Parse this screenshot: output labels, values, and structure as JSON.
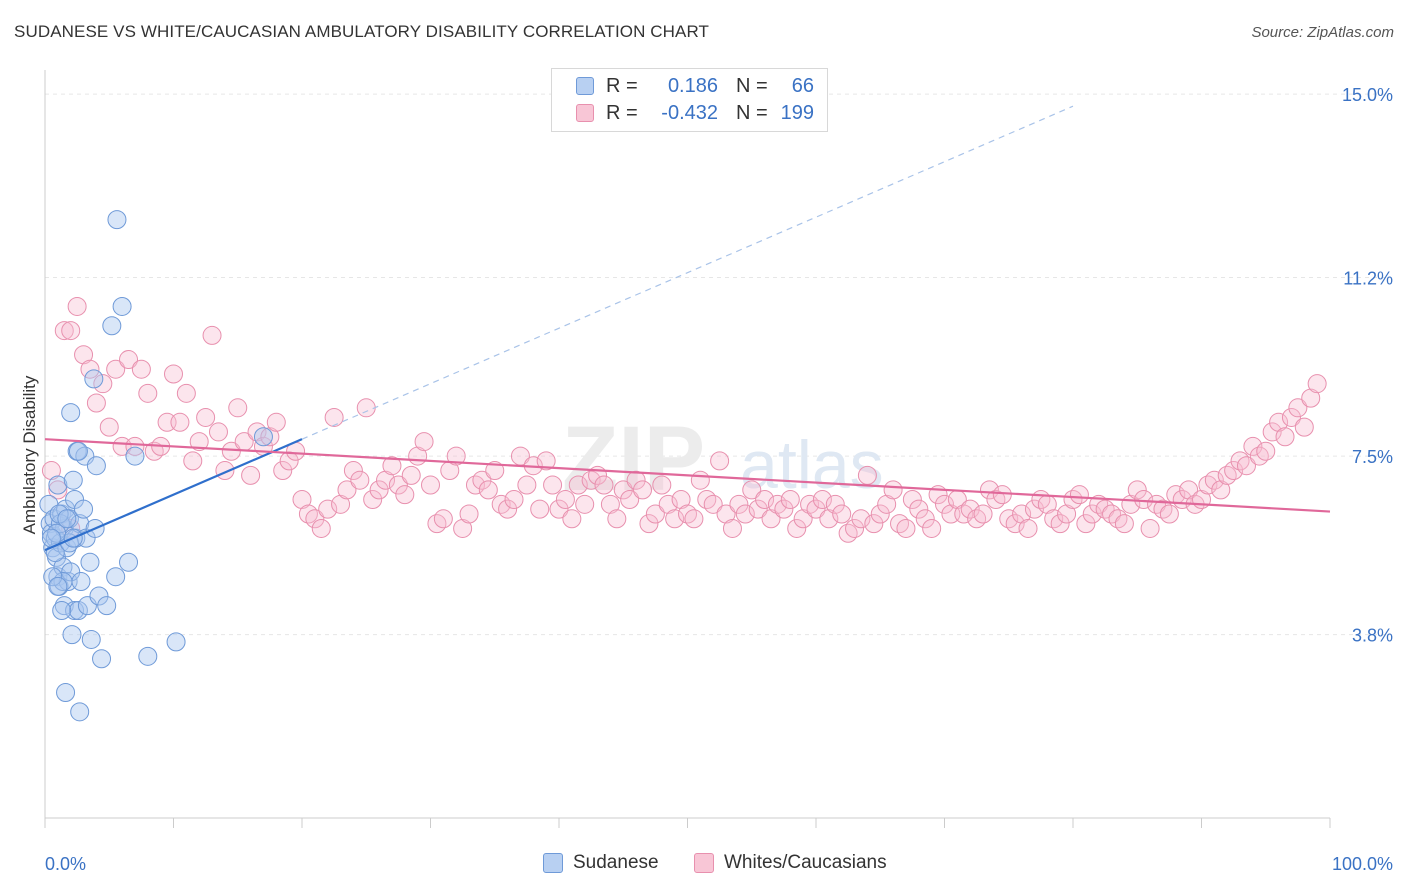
{
  "header": {
    "title": "SUDANESE VS WHITE/CAUCASIAN AMBULATORY DISABILITY CORRELATION CHART",
    "source": "Source: ZipAtlas.com"
  },
  "legend": {
    "rows": [
      {
        "r_label": "R =",
        "r_value": "0.186",
        "n_label": "N =",
        "n_value": "66",
        "fill": "#b8d0f2",
        "stroke": "#6f9ad8"
      },
      {
        "r_label": "R =",
        "r_value": "-0.432",
        "n_label": "N =",
        "n_value": "199",
        "fill": "#f8c6d6",
        "stroke": "#e890ae"
      }
    ]
  },
  "bottom_legend": {
    "items": [
      {
        "label": "Sudanese",
        "fill": "#b8d0f2",
        "stroke": "#6f9ad8"
      },
      {
        "label": "Whites/Caucasians",
        "fill": "#f8c6d6",
        "stroke": "#e890ae"
      }
    ]
  },
  "watermark": {
    "zip": "ZIP",
    "atlas": "atlas"
  },
  "chart_data": {
    "type": "scatter",
    "title": "SUDANESE VS WHITE/CAUCASIAN AMBULATORY DISABILITY CORRELATION CHART",
    "xlabel": "",
    "ylabel": "Ambulatory Disability",
    "xlim": [
      0,
      100
    ],
    "ylim": [
      0.0,
      15.5
    ],
    "x_tick_labels": [
      "0.0%",
      "100.0%"
    ],
    "y_ticks": [
      3.8,
      7.5,
      11.2,
      15.0
    ],
    "y_tick_labels": [
      "3.8%",
      "7.5%",
      "11.2%",
      "15.0%"
    ],
    "grid": true,
    "colors": {
      "sudanese_fill": "rgba(170,200,240,0.45)",
      "sudanese_stroke": "#6f9ad8",
      "sudanese_line": "#2f6fcc",
      "white_fill": "rgba(248,190,210,0.40)",
      "white_stroke": "#e890ae",
      "white_line": "#e0689a",
      "grid": "#e6e6e6",
      "tick_label": "#3a72c4"
    },
    "series": [
      {
        "name": "Sudanese",
        "trend": {
          "x0": 0,
          "y0": 5.55,
          "x1": 20,
          "y1": 7.85,
          "dash_to_x": 80
        },
        "points": [
          [
            0.3,
            6.5
          ],
          [
            0.4,
            6.1
          ],
          [
            0.5,
            5.9
          ],
          [
            0.6,
            5.6
          ],
          [
            0.7,
            6.2
          ],
          [
            0.8,
            5.8
          ],
          [
            0.9,
            5.4
          ],
          [
            1.0,
            5.0
          ],
          [
            1.0,
            6.9
          ],
          [
            1.1,
            4.8
          ],
          [
            1.2,
            5.7
          ],
          [
            1.3,
            6.3
          ],
          [
            1.4,
            5.2
          ],
          [
            1.5,
            4.4
          ],
          [
            1.5,
            6.0
          ],
          [
            1.6,
            6.4
          ],
          [
            1.7,
            5.6
          ],
          [
            1.8,
            4.9
          ],
          [
            1.9,
            6.2
          ],
          [
            2.0,
            5.1
          ],
          [
            2.1,
            3.8
          ],
          [
            2.2,
            7.0
          ],
          [
            2.3,
            4.3
          ],
          [
            2.3,
            6.6
          ],
          [
            2.4,
            5.8
          ],
          [
            2.5,
            7.6
          ],
          [
            2.6,
            4.3
          ],
          [
            2.7,
            6.1
          ],
          [
            2.8,
            4.9
          ],
          [
            3.0,
            6.4
          ],
          [
            3.1,
            7.5
          ],
          [
            3.2,
            5.8
          ],
          [
            3.3,
            4.4
          ],
          [
            3.5,
            5.3
          ],
          [
            3.6,
            3.7
          ],
          [
            3.8,
            9.1
          ],
          [
            3.9,
            6.0
          ],
          [
            4.0,
            7.3
          ],
          [
            4.2,
            4.6
          ],
          [
            4.4,
            3.3
          ],
          [
            4.8,
            4.4
          ],
          [
            5.2,
            10.2
          ],
          [
            5.5,
            5.0
          ],
          [
            5.6,
            12.4
          ],
          [
            6.0,
            10.6
          ],
          [
            6.5,
            5.3
          ],
          [
            7.0,
            7.5
          ],
          [
            8.0,
            3.35
          ],
          [
            10.2,
            3.65
          ],
          [
            17.0,
            7.9
          ],
          [
            1.6,
            2.6
          ],
          [
            2.7,
            2.2
          ],
          [
            1.2,
            6.1
          ],
          [
            0.8,
            5.5
          ],
          [
            2.0,
            8.4
          ],
          [
            1.4,
            4.9
          ],
          [
            0.6,
            5.0
          ],
          [
            1.9,
            5.7
          ],
          [
            2.6,
            7.6
          ],
          [
            1.1,
            6.3
          ],
          [
            0.9,
            5.9
          ],
          [
            1.7,
            6.2
          ],
          [
            2.2,
            5.8
          ],
          [
            1.3,
            4.3
          ],
          [
            0.5,
            5.8
          ],
          [
            1.0,
            4.8
          ]
        ]
      },
      {
        "name": "Whites/Caucasians",
        "trend": {
          "x0": 0,
          "y0": 7.85,
          "x1": 100,
          "y1": 6.35
        },
        "points": [
          [
            0.5,
            7.2
          ],
          [
            1.0,
            6.8
          ],
          [
            1.5,
            10.1
          ],
          [
            2.0,
            10.1
          ],
          [
            2.0,
            6.0
          ],
          [
            2.5,
            10.6
          ],
          [
            3.0,
            9.6
          ],
          [
            3.5,
            9.3
          ],
          [
            4.0,
            8.6
          ],
          [
            4.5,
            9.0
          ],
          [
            5.0,
            8.1
          ],
          [
            5.5,
            9.3
          ],
          [
            6.0,
            7.7
          ],
          [
            6.5,
            9.5
          ],
          [
            7.0,
            7.7
          ],
          [
            7.5,
            9.3
          ],
          [
            8.0,
            8.8
          ],
          [
            8.5,
            7.6
          ],
          [
            9.0,
            7.7
          ],
          [
            9.5,
            8.2
          ],
          [
            10.0,
            9.2
          ],
          [
            10.5,
            8.2
          ],
          [
            11.0,
            8.8
          ],
          [
            11.5,
            7.4
          ],
          [
            12.0,
            7.8
          ],
          [
            12.5,
            8.3
          ],
          [
            13.0,
            10.0
          ],
          [
            13.5,
            8.0
          ],
          [
            14.0,
            7.2
          ],
          [
            14.5,
            7.6
          ],
          [
            15.0,
            8.5
          ],
          [
            15.5,
            7.8
          ],
          [
            16.0,
            7.1
          ],
          [
            16.5,
            8.0
          ],
          [
            17.0,
            7.7
          ],
          [
            17.5,
            7.9
          ],
          [
            18.0,
            8.2
          ],
          [
            18.5,
            7.2
          ],
          [
            19.0,
            7.4
          ],
          [
            19.5,
            7.6
          ],
          [
            20.0,
            6.6
          ],
          [
            20.5,
            6.3
          ],
          [
            21.0,
            6.2
          ],
          [
            21.5,
            6.0
          ],
          [
            22.0,
            6.4
          ],
          [
            22.5,
            8.3
          ],
          [
            23.0,
            6.5
          ],
          [
            23.5,
            6.8
          ],
          [
            24.0,
            7.2
          ],
          [
            24.5,
            7.0
          ],
          [
            25.0,
            8.5
          ],
          [
            25.5,
            6.6
          ],
          [
            26.0,
            6.8
          ],
          [
            26.5,
            7.0
          ],
          [
            27.0,
            7.3
          ],
          [
            27.5,
            6.9
          ],
          [
            28.0,
            6.7
          ],
          [
            28.5,
            7.1
          ],
          [
            29.0,
            7.5
          ],
          [
            29.5,
            7.8
          ],
          [
            30.0,
            6.9
          ],
          [
            30.5,
            6.1
          ],
          [
            31.0,
            6.2
          ],
          [
            31.5,
            7.2
          ],
          [
            32.0,
            7.5
          ],
          [
            32.5,
            6.0
          ],
          [
            33.0,
            6.3
          ],
          [
            33.5,
            6.9
          ],
          [
            34.0,
            7.0
          ],
          [
            34.5,
            6.8
          ],
          [
            35.0,
            7.2
          ],
          [
            35.5,
            6.5
          ],
          [
            36.0,
            6.4
          ],
          [
            36.5,
            6.6
          ],
          [
            37.0,
            7.5
          ],
          [
            37.5,
            6.9
          ],
          [
            38.0,
            7.3
          ],
          [
            38.5,
            6.4
          ],
          [
            39.0,
            7.4
          ],
          [
            39.5,
            6.9
          ],
          [
            40.0,
            6.4
          ],
          [
            40.5,
            6.6
          ],
          [
            41.0,
            6.2
          ],
          [
            41.5,
            6.9
          ],
          [
            42.0,
            6.5
          ],
          [
            42.5,
            7.0
          ],
          [
            43.0,
            7.1
          ],
          [
            43.5,
            6.9
          ],
          [
            44.0,
            6.5
          ],
          [
            44.5,
            6.2
          ],
          [
            45.0,
            6.8
          ],
          [
            45.5,
            6.6
          ],
          [
            46.0,
            7.0
          ],
          [
            46.5,
            6.8
          ],
          [
            47.0,
            6.1
          ],
          [
            47.5,
            6.3
          ],
          [
            48.0,
            6.9
          ],
          [
            48.5,
            6.5
          ],
          [
            49.0,
            6.2
          ],
          [
            49.5,
            6.6
          ],
          [
            50.0,
            6.3
          ],
          [
            50.5,
            6.2
          ],
          [
            51.0,
            7.0
          ],
          [
            51.5,
            6.6
          ],
          [
            52.0,
            6.5
          ],
          [
            52.5,
            7.4
          ],
          [
            53.0,
            6.3
          ],
          [
            53.5,
            6.0
          ],
          [
            54.0,
            6.5
          ],
          [
            54.5,
            6.3
          ],
          [
            55.0,
            6.8
          ],
          [
            55.5,
            6.4
          ],
          [
            56.0,
            6.6
          ],
          [
            56.5,
            6.2
          ],
          [
            57.0,
            6.5
          ],
          [
            57.5,
            6.4
          ],
          [
            58.0,
            6.6
          ],
          [
            58.5,
            6.0
          ],
          [
            59.0,
            6.2
          ],
          [
            59.5,
            6.5
          ],
          [
            60.0,
            6.4
          ],
          [
            60.5,
            6.6
          ],
          [
            61.0,
            6.2
          ],
          [
            61.5,
            6.5
          ],
          [
            62.0,
            6.3
          ],
          [
            62.5,
            5.9
          ],
          [
            63.0,
            6.0
          ],
          [
            63.5,
            6.2
          ],
          [
            64.0,
            7.1
          ],
          [
            64.5,
            6.1
          ],
          [
            65.0,
            6.3
          ],
          [
            65.5,
            6.5
          ],
          [
            66.0,
            6.8
          ],
          [
            66.5,
            6.1
          ],
          [
            67.0,
            6.0
          ],
          [
            67.5,
            6.6
          ],
          [
            68.0,
            6.4
          ],
          [
            68.5,
            6.2
          ],
          [
            69.0,
            6.0
          ],
          [
            69.5,
            6.7
          ],
          [
            70.0,
            6.5
          ],
          [
            70.5,
            6.3
          ],
          [
            71.0,
            6.6
          ],
          [
            71.5,
            6.3
          ],
          [
            72.0,
            6.4
          ],
          [
            72.5,
            6.2
          ],
          [
            73.0,
            6.3
          ],
          [
            73.5,
            6.8
          ],
          [
            74.0,
            6.6
          ],
          [
            74.5,
            6.7
          ],
          [
            75.0,
            6.2
          ],
          [
            75.5,
            6.1
          ],
          [
            76.0,
            6.3
          ],
          [
            76.5,
            6.0
          ],
          [
            77.0,
            6.4
          ],
          [
            77.5,
            6.6
          ],
          [
            78.0,
            6.5
          ],
          [
            78.5,
            6.2
          ],
          [
            79.0,
            6.1
          ],
          [
            79.5,
            6.3
          ],
          [
            80.0,
            6.6
          ],
          [
            80.5,
            6.7
          ],
          [
            81.0,
            6.1
          ],
          [
            81.5,
            6.3
          ],
          [
            82.0,
            6.5
          ],
          [
            82.5,
            6.4
          ],
          [
            83.0,
            6.3
          ],
          [
            83.5,
            6.2
          ],
          [
            84.0,
            6.1
          ],
          [
            84.5,
            6.5
          ],
          [
            85.0,
            6.8
          ],
          [
            85.5,
            6.6
          ],
          [
            86.0,
            6.0
          ],
          [
            86.5,
            6.5
          ],
          [
            87.0,
            6.4
          ],
          [
            87.5,
            6.3
          ],
          [
            88.0,
            6.7
          ],
          [
            88.5,
            6.6
          ],
          [
            89.0,
            6.8
          ],
          [
            89.5,
            6.5
          ],
          [
            90.0,
            6.6
          ],
          [
            90.5,
            6.9
          ],
          [
            91.0,
            7.0
          ],
          [
            91.5,
            6.8
          ],
          [
            92.0,
            7.1
          ],
          [
            92.5,
            7.2
          ],
          [
            93.0,
            7.4
          ],
          [
            93.5,
            7.3
          ],
          [
            94.0,
            7.7
          ],
          [
            94.5,
            7.5
          ],
          [
            95.0,
            7.6
          ],
          [
            95.5,
            8.0
          ],
          [
            96.0,
            8.2
          ],
          [
            96.5,
            7.9
          ],
          [
            97.0,
            8.3
          ],
          [
            97.5,
            8.5
          ],
          [
            98.0,
            8.1
          ],
          [
            98.5,
            8.7
          ],
          [
            99.0,
            9.0
          ]
        ]
      }
    ]
  }
}
